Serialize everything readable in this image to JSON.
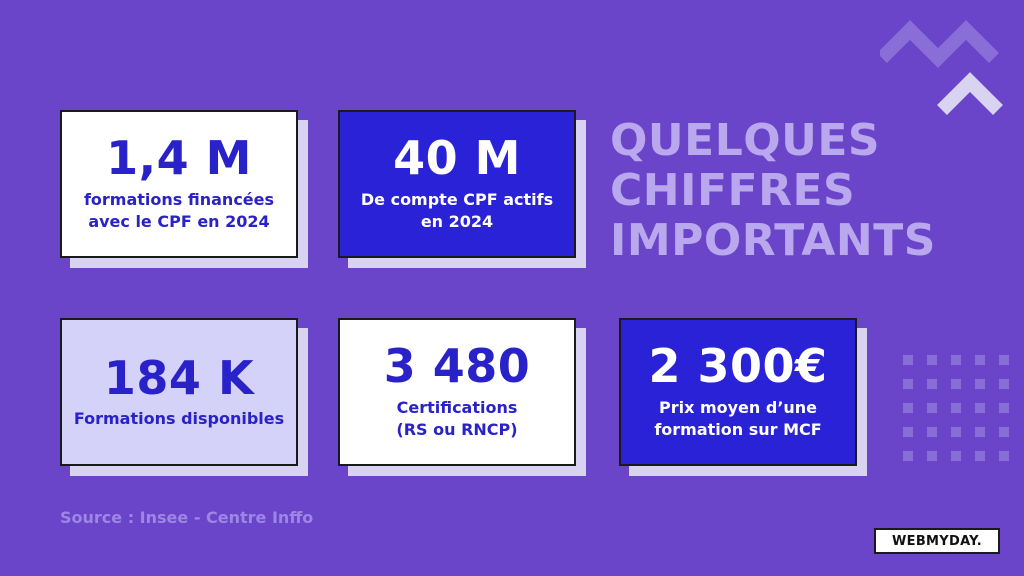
{
  "stats": [
    {
      "value": "1,4 M",
      "label_line1": "formations financées",
      "label_line2": "avec le CPF en 2024"
    },
    {
      "value": "40 M",
      "label_line1": "De compte CPF actifs",
      "label_line2": "en 2024"
    },
    {
      "value": "184 K",
      "label_line1": "Formations disponibles",
      "label_line2": ""
    },
    {
      "value": "3 480",
      "label_line1": "Certifications",
      "label_line2": "(RS ou RNCP)"
    },
    {
      "value": "2 300€",
      "label_line1": "Prix moyen d’une",
      "label_line2": "formation sur MCF"
    }
  ],
  "headline": {
    "line1": "QUELQUES",
    "line2": "CHIFFRES",
    "line3": "IMPORTANTS"
  },
  "source": "Source : Insee - Centre Inffo",
  "logo": "WEBMYDAY.",
  "colors": {
    "background": "#6b45c9",
    "accent_blue": "#2a22d6",
    "lavender": "#d4d2f8",
    "headline": "#b9a8ee"
  }
}
